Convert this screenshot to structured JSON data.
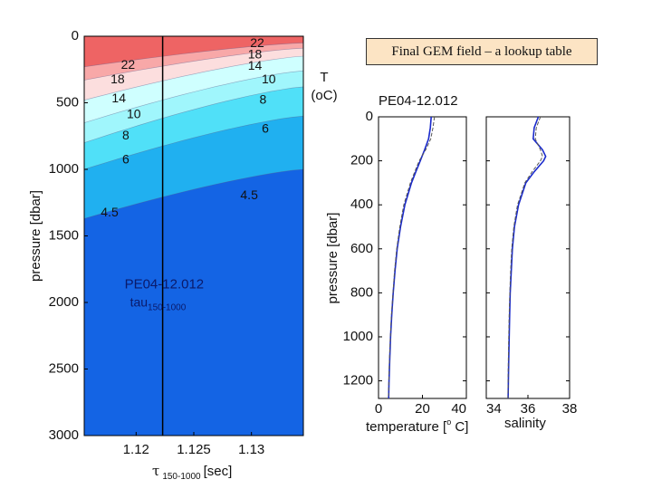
{
  "title_box": "Final GEM field – a lookup table",
  "t_label": {
    "line1": "T",
    "line2": "(oC)"
  },
  "chart_data": [
    {
      "type": "contour",
      "xlabel_main": "τ",
      "xlabel_sub": "150-1000",
      "xlabel_unit": "[sec]",
      "ylabel": "pressure [dbar]",
      "xlim": [
        1.1155,
        1.1345
      ],
      "ylim": [
        3000,
        0
      ],
      "xticks": [
        1.12,
        1.125,
        1.13
      ],
      "xtick_labels": [
        "1.12",
        "1.125",
        "1.13"
      ],
      "yticks": [
        0,
        500,
        1000,
        1500,
        2000,
        2500,
        3000
      ],
      "ytick_labels": [
        "0",
        "500",
        "1000",
        "1500",
        "2000",
        "2500",
        "3000"
      ],
      "marker_tau": 1.1223,
      "annotation": {
        "line1": "PE04-12.012",
        "line2_main": "tau",
        "line2_sub": "150-1000",
        "tau": 1.119,
        "pressure": 1950
      },
      "isotherms": [
        {
          "level": 22,
          "label": "22",
          "pressure_at_xmin": 230,
          "pressure_at_xmax": 50
        },
        {
          "level": 18,
          "label": "18",
          "pressure_at_xmin": 330,
          "pressure_at_xmax": 90
        },
        {
          "level": 14,
          "label": "14",
          "pressure_at_xmin": 480,
          "pressure_at_xmax": 150
        },
        {
          "level": 10,
          "label": "10",
          "pressure_at_xmin": 650,
          "pressure_at_xmax": 260
        },
        {
          "level": 8,
          "label": "8",
          "pressure_at_xmin": 800,
          "pressure_at_xmax": 380
        },
        {
          "level": 6,
          "label": "6",
          "pressure_at_xmin": 1000,
          "pressure_at_xmax": 600
        },
        {
          "level": 4.5,
          "label": "4.5",
          "pressure_at_xmin": 1370,
          "pressure_at_xmax": 1000
        }
      ],
      "contour_labels": [
        {
          "text": "22",
          "tau": 1.1305,
          "pressure": 55
        },
        {
          "text": "18",
          "tau": 1.1303,
          "pressure": 140
        },
        {
          "text": "14",
          "tau": 1.1303,
          "pressure": 225
        },
        {
          "text": "10",
          "tau": 1.1315,
          "pressure": 330
        },
        {
          "text": "8",
          "tau": 1.131,
          "pressure": 480
        },
        {
          "text": "6",
          "tau": 1.1312,
          "pressure": 700
        },
        {
          "text": "4.5",
          "tau": 1.1298,
          "pressure": 1200
        },
        {
          "text": "22",
          "tau": 1.1193,
          "pressure": 220
        },
        {
          "text": "18",
          "tau": 1.1184,
          "pressure": 330
        },
        {
          "text": "14",
          "tau": 1.1185,
          "pressure": 470
        },
        {
          "text": "10",
          "tau": 1.1198,
          "pressure": 590
        },
        {
          "text": "8",
          "tau": 1.1191,
          "pressure": 750
        },
        {
          "text": "6",
          "tau": 1.1191,
          "pressure": 930
        },
        {
          "text": "4.5",
          "tau": 1.1177,
          "pressure": 1330
        }
      ],
      "fill_colors": [
        "#ee6464",
        "#f8a8a8",
        "#fcdede",
        "#cfffff",
        "#a0f6fc",
        "#50e0f8",
        "#20b0f0",
        "#1464e4",
        "#0a3ce0"
      ]
    },
    {
      "type": "line",
      "title": "PE04-12.012",
      "ylabel": "pressure [dbar]",
      "ylim": [
        1280,
        0
      ],
      "yticks": [
        0,
        200,
        400,
        600,
        800,
        1000,
        1200
      ],
      "ytick_labels": [
        "0",
        "200",
        "400",
        "600",
        "800",
        "1000",
        "1200"
      ],
      "panels": [
        {
          "xlabel_main": "temperature [",
          "xlabel_deg": "o",
          "xlabel_end": " C]",
          "xlim": [
            0,
            40
          ],
          "xticks": [
            0,
            20,
            40
          ],
          "xtick_labels": [
            "0",
            "20",
            "40"
          ],
          "series": [
            {
              "style": "solid",
              "pressure": [
                0,
                50,
                100,
                150,
                200,
                250,
                300,
                400,
                500,
                600,
                700,
                800,
                900,
                1000,
                1100,
                1200,
                1280
              ],
              "values": [
                24,
                23.6,
                22.8,
                21,
                19,
                17,
                15,
                12,
                10,
                8.5,
                7.5,
                6.7,
                6,
                5.5,
                5.1,
                4.8,
                4.6
              ]
            },
            {
              "style": "dashed",
              "pressure": [
                0,
                50,
                100,
                150,
                200,
                250,
                300,
                400,
                500,
                600,
                700,
                800,
                900,
                1000,
                1100,
                1200,
                1280
              ],
              "values": [
                25.5,
                24.8,
                23.8,
                21.5,
                18.5,
                16.5,
                14.5,
                11.5,
                9.7,
                8.3,
                7.3,
                6.6,
                5.9,
                5.4,
                5,
                4.7,
                4.5
              ]
            }
          ]
        },
        {
          "xlabel_main": "salinity",
          "xlim": [
            34,
            38
          ],
          "xticks": [
            34,
            36,
            38
          ],
          "xtick_labels": [
            "34",
            "36",
            "38"
          ],
          "series": [
            {
              "style": "solid",
              "pressure": [
                0,
                50,
                100,
                150,
                180,
                200,
                250,
                300,
                400,
                500,
                600,
                700,
                800,
                900,
                1000,
                1100,
                1200,
                1280
              ],
              "values": [
                36.5,
                36.3,
                36.25,
                36.7,
                36.85,
                36.75,
                36.3,
                35.9,
                35.55,
                35.35,
                35.25,
                35.2,
                35.15,
                35.12,
                35.1,
                35.08,
                35.06,
                35.05
              ]
            },
            {
              "style": "dashed",
              "pressure": [
                0,
                50,
                100,
                150,
                180,
                200,
                250,
                300,
                400,
                500,
                600,
                700,
                800,
                900,
                1000,
                1100,
                1200,
                1280
              ],
              "values": [
                36.6,
                36.4,
                36.35,
                36.6,
                36.7,
                36.6,
                36.2,
                35.85,
                35.5,
                35.32,
                35.22,
                35.17,
                35.13,
                35.1,
                35.08,
                35.06,
                35.05,
                35.04
              ]
            }
          ]
        }
      ]
    }
  ]
}
